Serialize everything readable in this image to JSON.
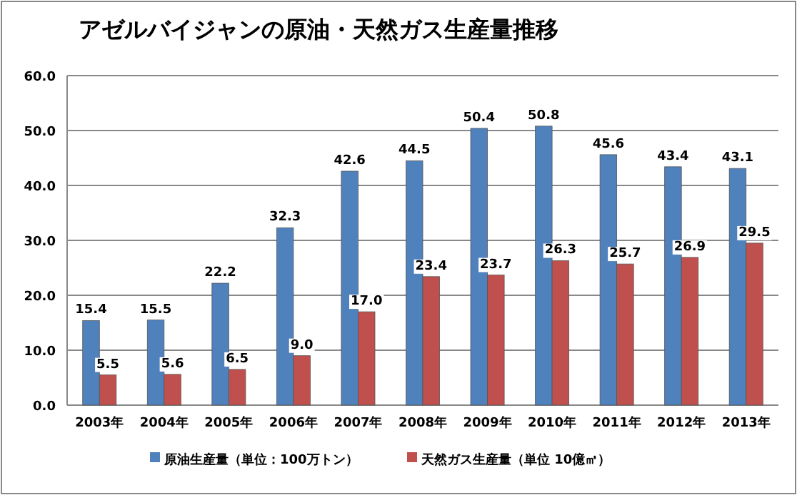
{
  "chart_data": {
    "type": "bar",
    "title": "アゼルバイジャンの原油・天然ガス生産量推移",
    "categories": [
      "2003年",
      "2004年",
      "2005年",
      "2006年",
      "2007年",
      "2008年",
      "2009年",
      "2010年",
      "2011年",
      "2012年",
      "2013年"
    ],
    "series": [
      {
        "name": "原油生産量（単位：100万トン）",
        "color": "#4f81bd",
        "values": [
          15.4,
          15.5,
          22.2,
          32.3,
          42.6,
          44.5,
          50.4,
          50.8,
          45.6,
          43.4,
          43.1
        ],
        "value_labels": [
          "15.4",
          "15.5",
          "22.2",
          "32.3",
          "42.6",
          "44.5",
          "50.4",
          "50.8",
          "45.6",
          "43.4",
          "43.1"
        ]
      },
      {
        "name": "天然ガス生産量（単位 10億㎥）",
        "color": "#c0504d",
        "values": [
          5.5,
          5.6,
          6.5,
          9.0,
          17.0,
          23.4,
          23.7,
          26.3,
          25.7,
          26.9,
          29.5
        ],
        "value_labels": [
          "5.5",
          "5.6",
          "6.5",
          "9.0",
          "17.0",
          "23.4",
          "23.7",
          "26.3",
          "25.7",
          "26.9",
          "29.5"
        ]
      }
    ],
    "ylim": [
      0,
      60
    ],
    "yticks": [
      {
        "value": 0,
        "label": "0.0"
      },
      {
        "value": 10,
        "label": "10.0"
      },
      {
        "value": 20,
        "label": "20.0"
      },
      {
        "value": 30,
        "label": "30.0"
      },
      {
        "value": 40,
        "label": "40.0"
      },
      {
        "value": 50,
        "label": "50.0"
      },
      {
        "value": 60,
        "label": "60.0"
      }
    ],
    "grid": "y",
    "legend": "bottom"
  }
}
